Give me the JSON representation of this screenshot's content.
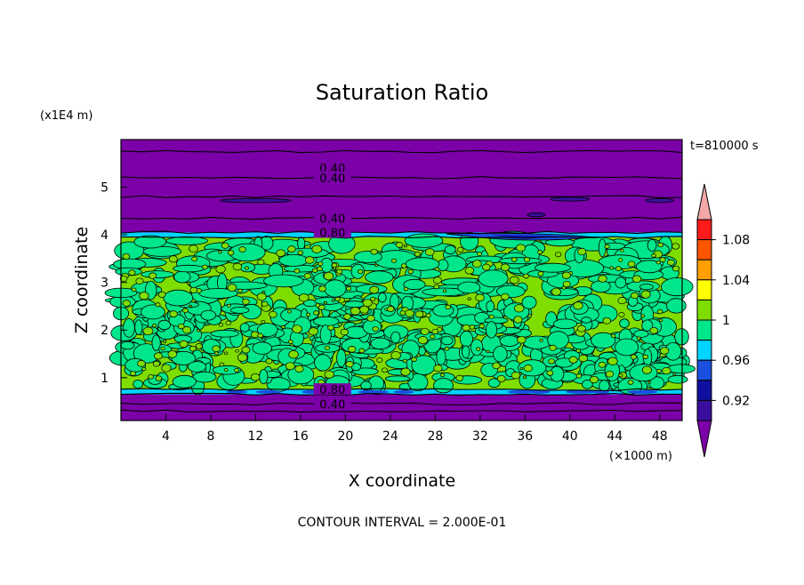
{
  "chart_data": {
    "type": "heatmap",
    "title": "Saturation Ratio",
    "xlabel": "X coordinate",
    "ylabel": "Z coordinate",
    "x_unit": "(×1000 m)",
    "y_unit": "(x1E4 m)",
    "time_label": "t=810000 s",
    "footer": "CONTOUR INTERVAL = 2.000E-01",
    "x_range": [
      0,
      50
    ],
    "y_range": [
      0.1,
      6.0
    ],
    "x_ticks": [
      "4",
      "8",
      "12",
      "16",
      "20",
      "24",
      "28",
      "32",
      "36",
      "40",
      "44",
      "48"
    ],
    "y_ticks": [
      "1",
      "2",
      "3",
      "4",
      "5"
    ],
    "contour_labels": [
      "0.40",
      "0.40",
      "0.40",
      "0.80",
      "0.80",
      "0.40"
    ],
    "colorbar": {
      "tick_labels": [
        "1.08",
        "1.04",
        "1",
        "0.96",
        "0.92"
      ],
      "colors": [
        "#7b00a8",
        "#3b0f9e",
        "#1010a0",
        "#1a4fe0",
        "#00d4ff",
        "#00e68a",
        "#7fdd00",
        "#ffff00",
        "#ff9f00",
        "#ff5500",
        "#ff1a1a",
        "#f4a8a8"
      ]
    },
    "regions": [
      {
        "z": [
          5.25,
          6.0
        ],
        "level": "below 0.92"
      },
      {
        "z": [
          4.05,
          5.25
        ],
        "level": "below 0.92"
      },
      {
        "z": [
          3.95,
          4.05
        ],
        "level": "0.92 - 0.98"
      },
      {
        "z": [
          0.75,
          3.95
        ],
        "level": "0.98 - 1.02"
      },
      {
        "z": [
          0.65,
          0.75
        ],
        "level": "0.96 - 0.98"
      },
      {
        "z": [
          0.1,
          0.65
        ],
        "level": "below 0.92"
      }
    ]
  }
}
